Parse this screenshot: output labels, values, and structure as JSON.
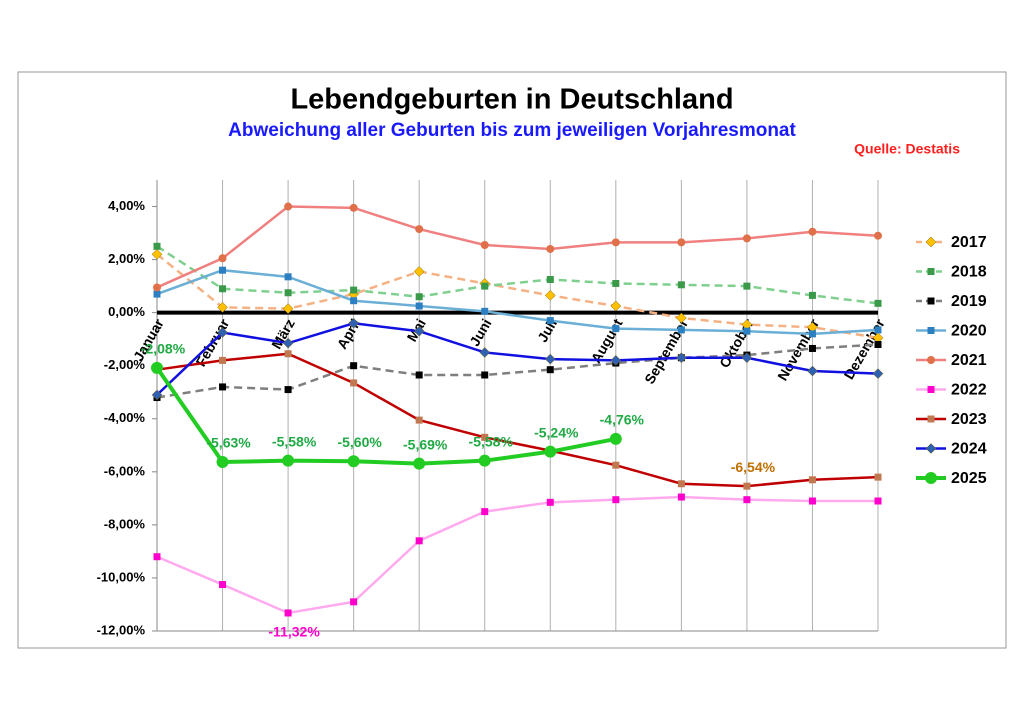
{
  "chart_data": {
    "type": "line",
    "title": "Lebendgeburten in Deutschland",
    "subtitle": "Abweichung aller Geburten bis zum jeweiligen Vorjahresmonat",
    "source": "Quelle: Destatis",
    "categories": [
      "Januar",
      "Februar",
      "März",
      "April",
      "Mai",
      "Juni",
      "Juli",
      "August",
      "September",
      "Oktober",
      "November",
      "Dezember"
    ],
    "ylim": [
      -12,
      5
    ],
    "yticks": [
      {
        "value": -12,
        "label": "-12,00%"
      },
      {
        "value": -10,
        "label": "-10,00%"
      },
      {
        "value": -8,
        "label": "-8,00%"
      },
      {
        "value": -6,
        "label": "-6,00%"
      },
      {
        "value": -4,
        "label": "-4,00%"
      },
      {
        "value": -2,
        "label": "-2,00%"
      },
      {
        "value": 0,
        "label": "0,00%"
      },
      {
        "value": 2,
        "label": "2,00%"
      },
      {
        "value": 4,
        "label": "4,00%"
      }
    ],
    "grid": "x",
    "legend": "right",
    "series": [
      {
        "name": "2017",
        "color": "#f4b183",
        "marker_color": "#ffc000",
        "marker": "diamond",
        "dashed": true,
        "values": [
          2.2,
          0.2,
          0.15,
          0.7,
          1.55,
          1.1,
          0.65,
          0.25,
          -0.2,
          -0.45,
          -0.55,
          -0.95
        ]
      },
      {
        "name": "2018",
        "color": "#7fd08f",
        "marker_color": "#3a9a4a",
        "marker": "square",
        "dashed": true,
        "values": [
          2.5,
          0.9,
          0.75,
          0.85,
          0.6,
          1.0,
          1.25,
          1.1,
          1.05,
          1.0,
          0.65,
          0.35
        ]
      },
      {
        "name": "2019",
        "color": "#7f7f7f",
        "marker_color": "#000000",
        "marker": "square",
        "dashed": true,
        "values": [
          -3.2,
          -2.8,
          -2.9,
          -2.0,
          -2.35,
          -2.35,
          -2.15,
          -1.9,
          -1.7,
          -1.6,
          -1.35,
          -1.2
        ]
      },
      {
        "name": "2020",
        "color": "#6baed6",
        "marker_color": "#2c7fc0",
        "marker": "square",
        "dashed": false,
        "values": [
          0.7,
          1.6,
          1.35,
          0.45,
          0.25,
          0.05,
          -0.3,
          -0.6,
          -0.65,
          -0.7,
          -0.8,
          -0.65
        ]
      },
      {
        "name": "2021",
        "color": "#f08080",
        "marker_color": "#e0704a",
        "marker": "circle",
        "dashed": false,
        "values": [
          0.95,
          2.05,
          4.0,
          3.95,
          3.15,
          2.55,
          2.4,
          2.65,
          2.65,
          2.8,
          3.05,
          2.9
        ]
      },
      {
        "name": "2022",
        "color": "#ffaaee",
        "marker_color": "#ff00cc",
        "marker": "square",
        "dashed": false,
        "label_color": "#ff00cc",
        "label_position": "below",
        "values": [
          -9.2,
          -10.25,
          -11.32,
          -10.9,
          -8.6,
          -7.5,
          -7.15,
          -7.05,
          -6.95,
          -7.05,
          -7.1,
          -7.1
        ],
        "value_labels": [
          null,
          null,
          "-11,32%",
          null,
          null,
          null,
          null,
          null,
          null,
          null,
          null,
          null
        ]
      },
      {
        "name": "2023",
        "color": "#c00000",
        "marker_color": "#c07850",
        "marker": "square",
        "dashed": false,
        "label_color": "#c07000",
        "label_position": "above",
        "values": [
          -2.15,
          -1.8,
          -1.55,
          -2.65,
          -4.05,
          -4.7,
          -5.2,
          -5.75,
          -6.45,
          -6.54,
          -6.3,
          -6.2
        ],
        "value_labels": [
          null,
          null,
          null,
          null,
          null,
          null,
          null,
          null,
          null,
          "-6,54%",
          null,
          null
        ]
      },
      {
        "name": "2024",
        "color": "#1010e0",
        "marker_color": "#3060b0",
        "marker": "diamond",
        "dashed": false,
        "values": [
          -3.1,
          -0.75,
          -1.15,
          -0.4,
          -0.7,
          -1.5,
          -1.75,
          -1.8,
          -1.7,
          -1.7,
          -2.2,
          -2.3
        ]
      },
      {
        "name": "2025",
        "color": "#22cc22",
        "marker_color": "#22cc22",
        "marker": "circle",
        "dashed": false,
        "thick": true,
        "label_color": "#1faa44",
        "label_position": "above",
        "values": [
          -2.08,
          -5.63,
          -5.58,
          -5.6,
          -5.69,
          -5.58,
          -5.24,
          -4.76,
          null,
          null,
          null,
          null
        ],
        "value_labels": [
          "-2,08%",
          "-5,63%",
          "-5,58%",
          "-5,60%",
          "-5,69%",
          "-5,58%",
          "-5,24%",
          "-4,76%",
          null,
          null,
          null,
          null
        ]
      }
    ]
  }
}
